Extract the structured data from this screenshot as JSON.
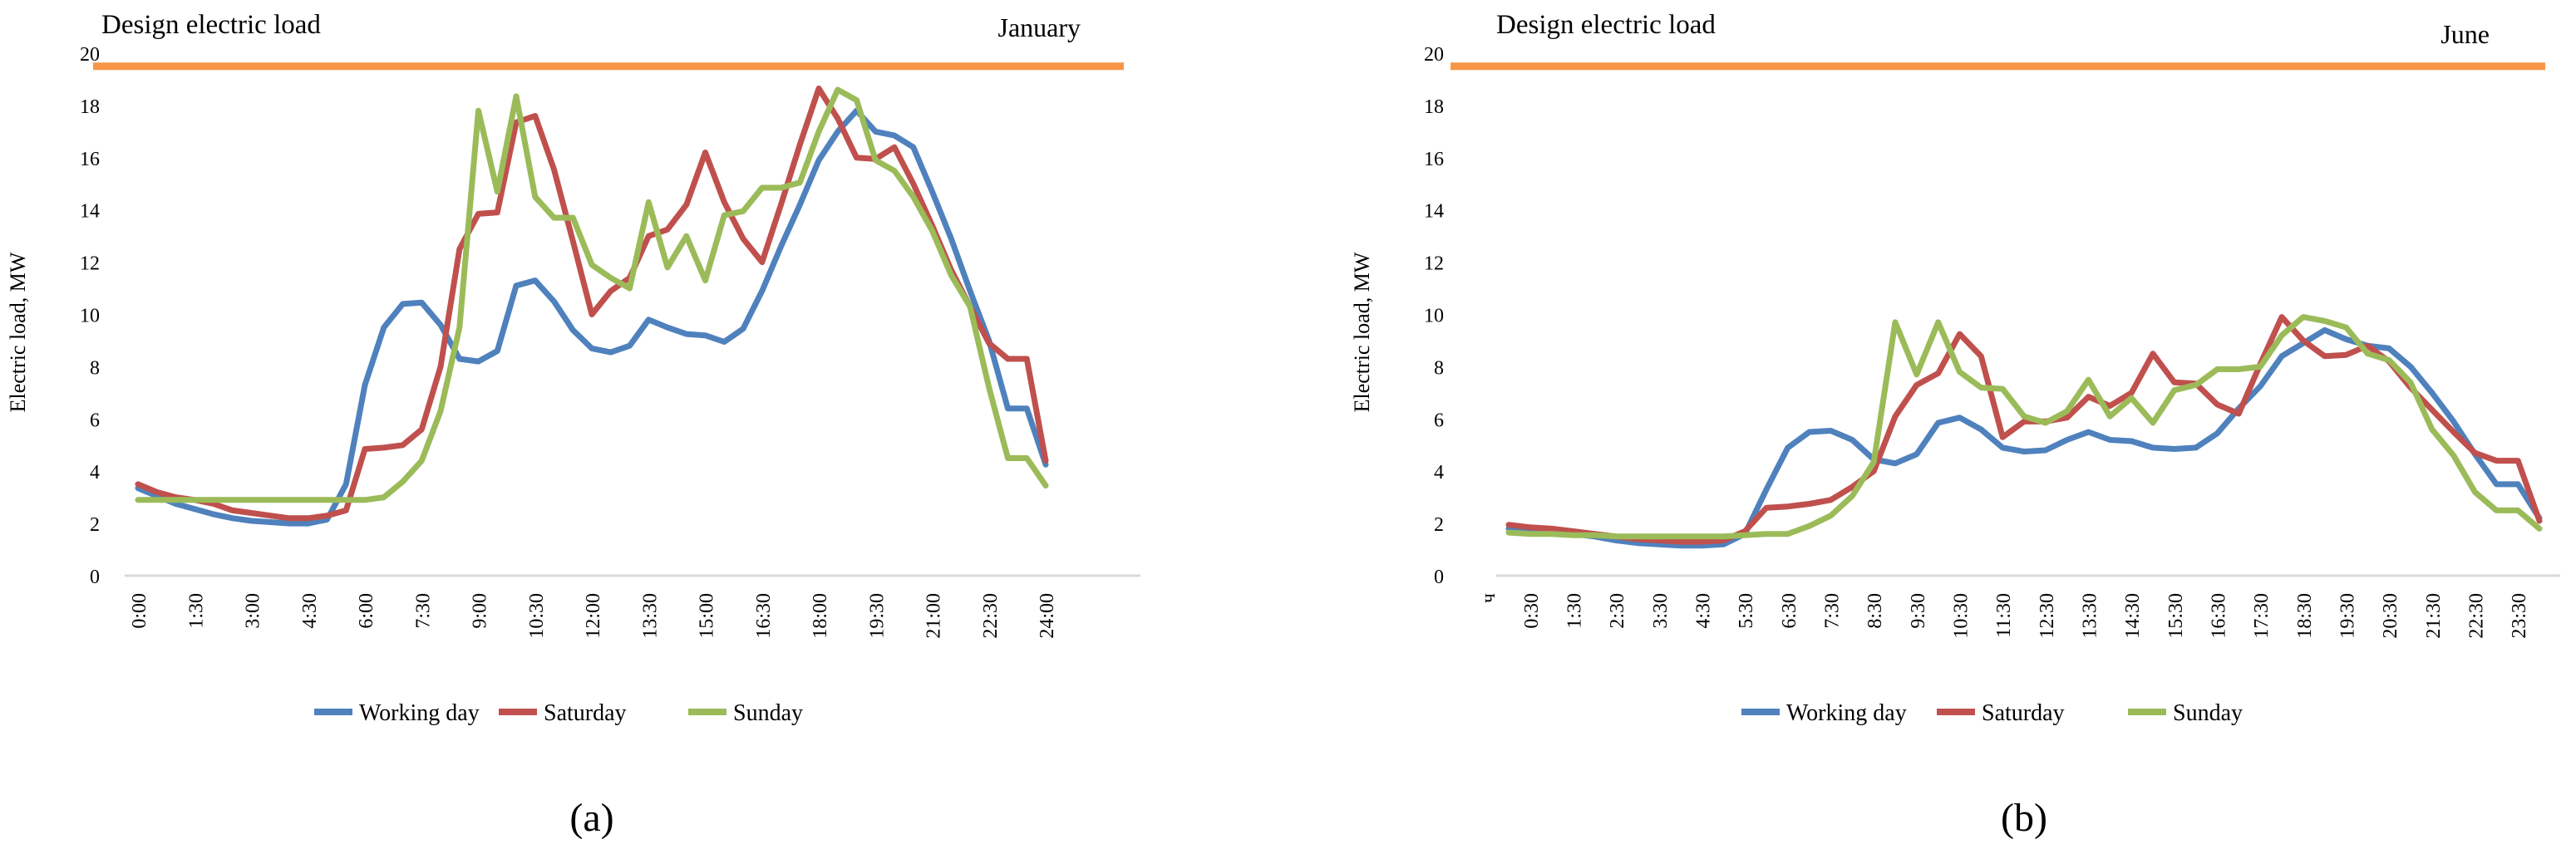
{
  "colors": {
    "working_day": "#4F81BD",
    "saturday": "#C0504D",
    "sunday": "#9BBB59",
    "design_line": "#F79646",
    "axis_line": "#D9D9D9",
    "text": "#000000"
  },
  "legend": {
    "items": [
      {
        "key": "working-day",
        "label": "Working day",
        "color": "#4F81BD"
      },
      {
        "key": "saturday",
        "label": "Saturday",
        "color": "#C0504D"
      },
      {
        "key": "sunday",
        "label": "Sunday",
        "color": "#9BBB59"
      }
    ]
  },
  "chart_data": [
    {
      "type": "line",
      "id": "a",
      "caption": "(a)",
      "month": "January",
      "design_line": {
        "label": "Design electric load",
        "value": 19.5,
        "color": "#F79646"
      },
      "y_axis": {
        "title": "Electric load,  MW",
        "min": 0,
        "max": 20,
        "ticks": [
          0,
          2,
          4,
          6,
          8,
          10,
          12,
          14,
          16,
          18,
          20
        ]
      },
      "x_axis": {
        "start": "0:00",
        "end": "24:00",
        "step_minutes": 30,
        "grid": false
      },
      "x_ticks": [
        "0:00",
        "1:30",
        "3:00",
        "4:30",
        "6:00",
        "7:30",
        "9:00",
        "10:30",
        "12:00",
        "13:30",
        "15:00",
        "16:30",
        "18:00",
        "19:30",
        "21:00",
        "22:30",
        "24:00"
      ],
      "series": [
        {
          "key": "working-day",
          "name": "Working day",
          "color": "#4F81BD",
          "values": [
            3.35,
            3.05,
            2.75,
            2.55,
            2.35,
            2.2,
            2.1,
            2.05,
            2.0,
            2.0,
            2.15,
            3.5,
            7.3,
            9.5,
            10.4,
            10.45,
            9.6,
            8.3,
            8.2,
            8.6,
            11.1,
            11.3,
            10.5,
            9.4,
            8.7,
            8.55,
            8.8,
            9.8,
            9.5,
            9.25,
            9.2,
            8.95,
            9.45,
            10.9,
            12.6,
            14.2,
            15.9,
            17.0,
            17.8,
            17.0,
            16.85,
            16.4,
            14.7,
            12.9,
            10.9,
            9.0,
            6.4,
            6.4,
            4.25
          ]
        },
        {
          "key": "saturday",
          "name": "Saturday",
          "color": "#C0504D",
          "values": [
            3.5,
            3.2,
            3.0,
            2.9,
            2.75,
            2.5,
            2.4,
            2.3,
            2.2,
            2.2,
            2.3,
            2.5,
            4.85,
            4.9,
            5.0,
            5.6,
            8.0,
            12.5,
            13.85,
            13.9,
            17.35,
            17.6,
            15.55,
            12.8,
            10.0,
            10.9,
            11.4,
            13.0,
            13.25,
            14.2,
            16.2,
            14.3,
            12.9,
            12.0,
            14.2,
            16.5,
            18.65,
            17.5,
            16.0,
            15.95,
            16.4,
            15.0,
            13.4,
            11.7,
            10.3,
            8.9,
            8.3,
            8.3,
            4.4
          ]
        },
        {
          "key": "sunday",
          "name": "Sunday",
          "color": "#9BBB59",
          "values": [
            2.9,
            2.9,
            2.9,
            2.9,
            2.9,
            2.9,
            2.9,
            2.9,
            2.9,
            2.9,
            2.9,
            2.9,
            2.9,
            3.0,
            3.6,
            4.4,
            6.3,
            9.5,
            17.8,
            14.7,
            18.35,
            14.5,
            13.7,
            13.7,
            11.9,
            11.4,
            11.0,
            14.3,
            11.8,
            13.0,
            11.3,
            13.8,
            13.95,
            14.85,
            14.85,
            15.05,
            17.0,
            18.6,
            18.2,
            15.9,
            15.5,
            14.5,
            13.2,
            11.5,
            10.3,
            7.2,
            4.5,
            4.5,
            3.45
          ]
        }
      ]
    },
    {
      "type": "line",
      "id": "b",
      "caption": "(b)",
      "month": "June",
      "design_line": {
        "label": "Design electric load",
        "value": 19.5,
        "color": "#F79646"
      },
      "y_axis": {
        "title": "Electric load, MW",
        "min": 0,
        "max": 20,
        "ticks": [
          0,
          2,
          4,
          6,
          8,
          10,
          12,
          14,
          16,
          18,
          20
        ]
      },
      "x_axis": {
        "start": "0:00",
        "end": "24:00",
        "step_minutes": 30,
        "grid": false
      },
      "x_ticks": [
        "ч",
        "0:30",
        "1:30",
        "2:30",
        "3:30",
        "4:30",
        "5:30",
        "6:30",
        "7:30",
        "8:30",
        "9:30",
        "10:30",
        "11:30",
        "12:30",
        "13:30",
        "14:30",
        "15:30",
        "16:30",
        "17:30",
        "18:30",
        "19:30",
        "20:30",
        "21:30",
        "22:30",
        "23:30"
      ],
      "series": [
        {
          "key": "working-day",
          "name": "Working day",
          "color": "#4F81BD",
          "values": [
            1.8,
            1.75,
            1.7,
            1.6,
            1.5,
            1.35,
            1.25,
            1.2,
            1.15,
            1.15,
            1.2,
            1.6,
            3.3,
            4.9,
            5.5,
            5.55,
            5.2,
            4.45,
            4.3,
            4.65,
            5.85,
            6.05,
            5.6,
            4.9,
            4.75,
            4.8,
            5.2,
            5.5,
            5.2,
            5.15,
            4.9,
            4.85,
            4.9,
            5.45,
            6.4,
            7.25,
            8.4,
            8.9,
            9.4,
            9.05,
            8.8,
            8.7,
            8.0,
            7.0,
            5.9,
            4.65,
            3.5,
            3.5,
            2.2
          ]
        },
        {
          "key": "saturday",
          "name": "Saturday",
          "color": "#C0504D",
          "values": [
            1.95,
            1.85,
            1.8,
            1.7,
            1.6,
            1.5,
            1.4,
            1.35,
            1.3,
            1.3,
            1.35,
            1.7,
            2.6,
            2.65,
            2.75,
            2.9,
            3.4,
            4.0,
            6.1,
            7.3,
            7.75,
            9.25,
            8.4,
            5.3,
            5.9,
            5.9,
            6.05,
            6.85,
            6.5,
            7.0,
            8.5,
            7.4,
            7.35,
            6.55,
            6.2,
            8.1,
            9.9,
            9.0,
            8.4,
            8.45,
            8.8,
            8.2,
            7.2,
            6.35,
            5.5,
            4.7,
            4.4,
            4.4,
            2.1
          ]
        },
        {
          "key": "sunday",
          "name": "Sunday",
          "color": "#9BBB59",
          "values": [
            1.65,
            1.6,
            1.6,
            1.55,
            1.55,
            1.5,
            1.5,
            1.5,
            1.5,
            1.5,
            1.5,
            1.55,
            1.6,
            1.6,
            1.9,
            2.3,
            3.05,
            4.35,
            9.7,
            7.7,
            9.7,
            7.8,
            7.2,
            7.15,
            6.1,
            5.85,
            6.3,
            7.5,
            6.1,
            6.8,
            5.85,
            7.1,
            7.3,
            7.9,
            7.9,
            8.0,
            9.2,
            9.9,
            9.75,
            9.5,
            8.5,
            8.25,
            7.4,
            5.6,
            4.6,
            3.2,
            2.5,
            2.5,
            1.8
          ]
        }
      ]
    }
  ]
}
